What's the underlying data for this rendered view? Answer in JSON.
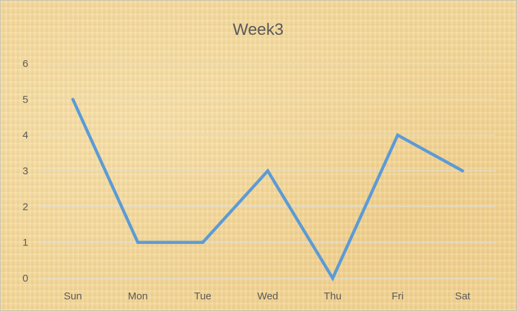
{
  "chart_data": {
    "type": "line",
    "title": "Week3",
    "xlabel": "",
    "ylabel": "",
    "categories": [
      "Sun",
      "Mon",
      "Tue",
      "Wed",
      "Thu",
      "Fri",
      "Sat"
    ],
    "series": [
      {
        "name": "",
        "values": [
          5,
          1,
          1,
          3,
          0,
          4,
          3
        ],
        "color": "#5b9bd5"
      }
    ],
    "ylim": [
      0,
      6
    ],
    "yticks": [
      0,
      1,
      2,
      3,
      4,
      5,
      6
    ],
    "grid": true,
    "legend": "none"
  }
}
